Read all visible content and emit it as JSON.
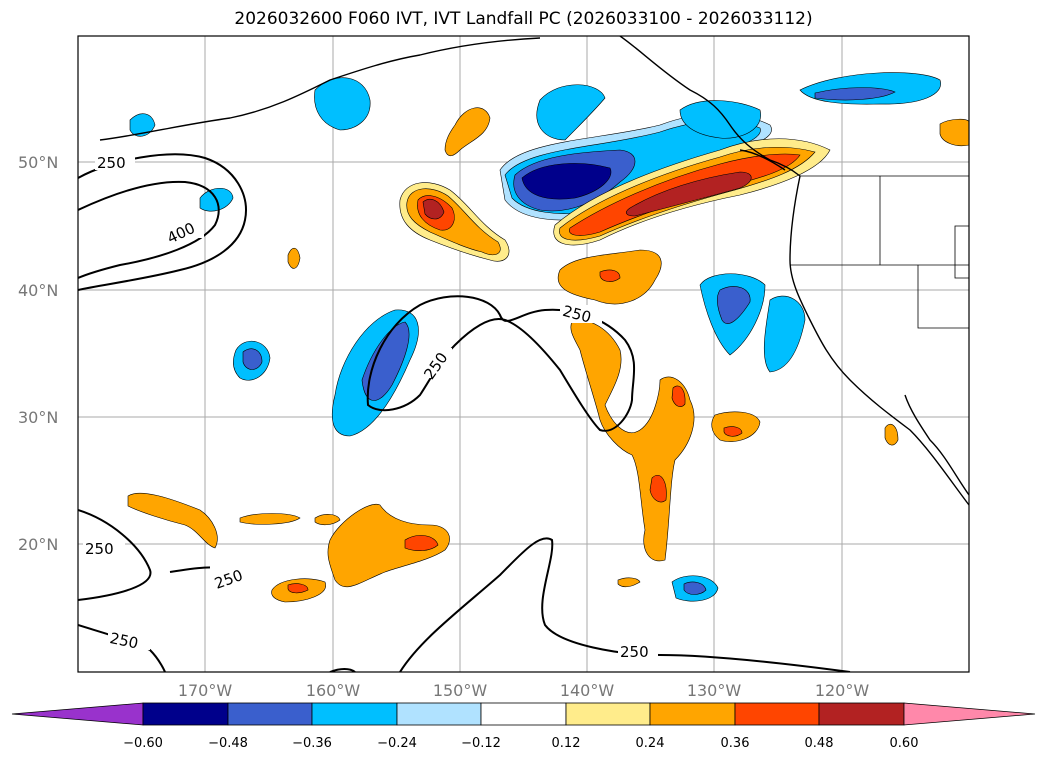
{
  "title": "2026032600 F060 IVT, IVT Landfall PC (2026033100 - 2026033112)",
  "lat_labels": [
    "50°N",
    "40°N",
    "30°N",
    "20°N"
  ],
  "lon_labels": [
    "170°W",
    "160°W",
    "150°W",
    "140°W",
    "130°W",
    "120°W"
  ],
  "contour_labels": [
    "250",
    "400",
    "250",
    "250",
    "250",
    "250",
    "250",
    "250"
  ],
  "colorbar": {
    "ticks": [
      "−0.60",
      "−0.48",
      "−0.36",
      "−0.24",
      "−0.12",
      "0.12",
      "0.24",
      "0.36",
      "0.48",
      "0.60"
    ],
    "colors": [
      "#9932cc",
      "#00008b",
      "#3a5fcd",
      "#00bfff",
      "#b0e2ff",
      "#ffffff",
      "#ffec8b",
      "#ffa500",
      "#ff4500",
      "#b22222",
      "#ff88aa"
    ]
  },
  "colors": {
    "darkblue": "#00008b",
    "blue": "#3a5fcd",
    "cyan": "#00bfff",
    "lightblue": "#b0e2ff",
    "yellow": "#ffec8b",
    "orange": "#ffa500",
    "redorange": "#ff4500",
    "firebrick": "#b22222"
  }
}
